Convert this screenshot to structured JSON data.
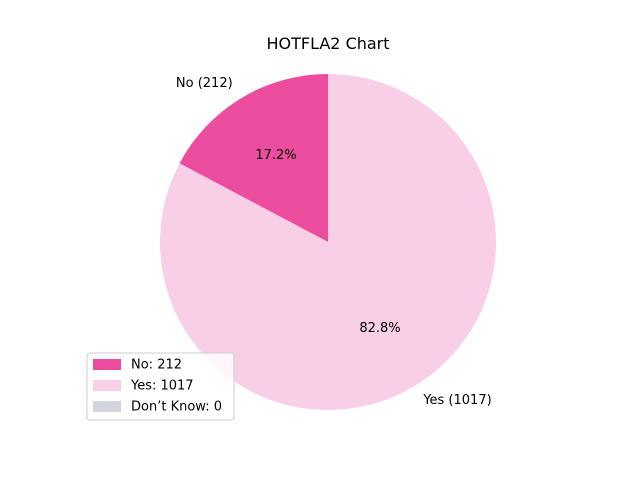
{
  "chart_data": {
    "type": "pie",
    "title": "HOTFLA2 Chart",
    "slices": [
      {
        "label": "No",
        "value": 212,
        "percent": "17.2%",
        "outer_label": "No (212)",
        "legend": "No: 212",
        "color": "#ec4d9e"
      },
      {
        "label": "Yes",
        "value": 1017,
        "percent": "82.8%",
        "outer_label": "Yes (1017)",
        "legend": "Yes: 1017",
        "color": "#f9cfe7"
      },
      {
        "label": "Don’t Know",
        "value": 0,
        "percent": "",
        "outer_label": "",
        "legend": "Don’t Know: 0",
        "color": "#d3d5de"
      }
    ],
    "start_angle_deg": 90,
    "direction": "counterclockwise",
    "legend_position": "lower-left"
  }
}
